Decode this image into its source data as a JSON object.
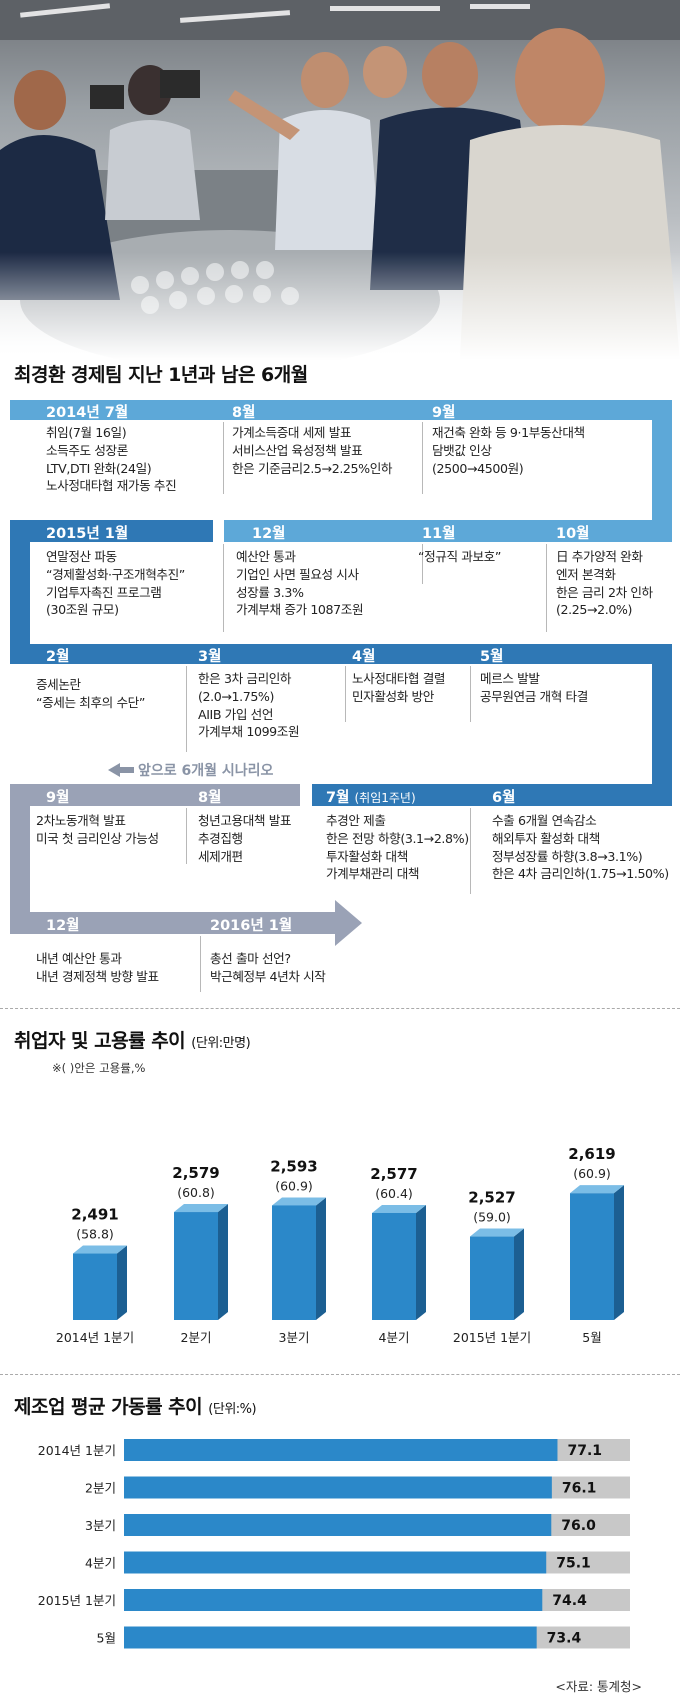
{
  "timeline": {
    "title": "최경환 경제팀 지난 1년과 남은 6개월",
    "scenario_label": "앞으로 6개월 시나리오",
    "events": [
      {
        "month": "2014년 7월",
        "items": [
          "취임(7월 16일)",
          "소득주도 성장론",
          "LTV,DTI 완화(24일)",
          "노사정대타협 재가동 추진"
        ]
      },
      {
        "month": "8월",
        "items": [
          "가계소득증대 세제 발표",
          "서비스산업 육성정책 발표",
          "한은 기준금리2.5→2.25%인하"
        ]
      },
      {
        "month": "9월",
        "items": [
          "재건축 완화 등 9·1부동산대책",
          "담뱃값 인상",
          "(2500→4500원)"
        ]
      },
      {
        "month": "10월",
        "items": [
          "日 추가양적 완화",
          "엔저 본격화",
          "한은 금리 2차 인하",
          "(2.25→2.0%)"
        ]
      },
      {
        "month": "11월",
        "items": [
          "“정규직 과보호”"
        ]
      },
      {
        "month": "12월",
        "items": [
          "예산안 통과",
          "기업인 사면 필요성 시사",
          "성장률 3.3%",
          "가계부채 증가 1087조원"
        ]
      },
      {
        "month": "2015년 1월",
        "items": [
          "연말정산 파동",
          "“경제활성화·구조개혁추진”",
          "기업투자촉진 프로그램",
          "(30조원 규모)"
        ]
      },
      {
        "month": "2월",
        "items": [
          "증세논란",
          "“증세는 최후의 수단”"
        ]
      },
      {
        "month": "3월",
        "items": [
          "한은 3차 금리인하",
          "(2.0→1.75%)",
          "AIIB 가입 선언",
          "가계부채 1099조원"
        ]
      },
      {
        "month": "4월",
        "items": [
          "노사정대타협 결렬",
          "민자활성화 방안"
        ]
      },
      {
        "month": "5월",
        "items": [
          "메르스 발발",
          "공무원연금 개혁 타결"
        ]
      },
      {
        "month": "6월",
        "items": [
          "수출 6개월 연속감소",
          "해외투자 활성화 대책",
          "정부성장률 하향(3.8→3.1%)",
          "한은 4차 금리인하(1.75→1.50%)"
        ]
      },
      {
        "month": "7월",
        "month_note": "(취임1주년)",
        "items": [
          "추경안 제출",
          "한은 전망 하향(3.1→2.8%)",
          "투자활성화 대책",
          "가계부채관리 대책"
        ]
      },
      {
        "month": "8월",
        "items": [
          "청년고용대책 발표",
          "추경집행",
          "세제개편"
        ]
      },
      {
        "month": "9월",
        "items": [
          "2차노동개혁 발표",
          "미국 첫 금리인상 가능성"
        ]
      },
      {
        "month": "12월",
        "items": [
          "내년 예산안 통과",
          "내년 경제정책 방향 발표"
        ]
      },
      {
        "month": "2016년 1월",
        "items": [
          "총선 출마 선언?",
          "박근혜정부 4년차 시작"
        ]
      }
    ]
  },
  "employment": {
    "title": "취업자 및 고용률 추이",
    "unit": "(단위:만명)",
    "note": "※( )안은 고용률,%",
    "labels": [
      "2,491",
      "2,579",
      "2,593",
      "2,577",
      "2,527",
      "2,619"
    ],
    "rates": [
      "(58.8)",
      "(60.8)",
      "(60.9)",
      "(60.4)",
      "(59.0)",
      "(60.9)"
    ]
  },
  "utilization": {
    "title": "제조업 평균 가동률 추이",
    "unit": "(단위:%)",
    "source": "<자료: 통계청>",
    "labels": [
      "77.1",
      "76.1",
      "76.0",
      "75.1",
      "74.4",
      "73.4"
    ]
  },
  "colors": {
    "blue_light": "#5da8d8",
    "blue_dark": "#2f78b5",
    "gray_band": "#9aa2b6",
    "bar_front": "#2b88c9",
    "bar_side": "#1c5f92",
    "bar_top": "#7bbde6",
    "track": "#c8c8c8"
  },
  "chart_data": [
    {
      "type": "bar",
      "title": "취업자 및 고용률 추이",
      "ylabel": "(단위:만명)",
      "categories": [
        "2014년 1분기",
        "2분기",
        "3분기",
        "4분기",
        "2015년 1분기",
        "5월"
      ],
      "values": [
        2491,
        2579,
        2593,
        2577,
        2527,
        2619
      ],
      "secondary_values": [
        58.8,
        60.8,
        60.9,
        60.4,
        59.0,
        60.9
      ],
      "ylim": [
        2350,
        2700
      ],
      "grid": false
    },
    {
      "type": "bar",
      "orientation": "horizontal",
      "title": "제조업 평균 가동률 추이",
      "xlabel": "(단위:%)",
      "categories": [
        "2014년 1분기",
        "2분기",
        "3분기",
        "4분기",
        "2015년 1분기",
        "5월"
      ],
      "values": [
        77.1,
        76.1,
        76.0,
        75.1,
        74.4,
        73.4
      ],
      "xlim": [
        0,
        90
      ],
      "grid": false
    }
  ]
}
